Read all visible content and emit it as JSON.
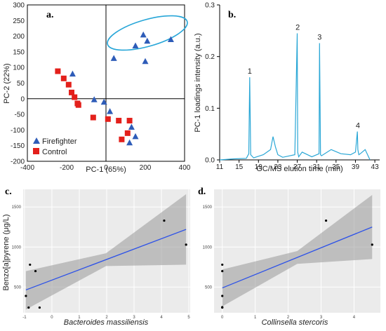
{
  "chart_data": [
    {
      "panel": "a.",
      "type": "scatter",
      "xlabel": "PC-1 (65%)",
      "ylabel": "PC-2 (22%)",
      "xlim": [
        -400,
        400
      ],
      "ylim": [
        -200,
        300
      ],
      "xticks": [
        "-400",
        "-200",
        "0",
        "200",
        "400"
      ],
      "yticks": [
        "-200",
        "-150",
        "-100",
        "-50",
        "0",
        "50",
        "100",
        "150",
        "200",
        "250",
        "300"
      ],
      "legend_position": "bottom-left",
      "series": [
        {
          "name": "Firefighter",
          "color": "#2e5cb8",
          "marker": "triangle",
          "points": [
            [
              150,
              170
            ],
            [
              190,
              205
            ],
            [
              210,
              185
            ],
            [
              330,
              190
            ],
            [
              40,
              130
            ],
            [
              200,
              120
            ],
            [
              -170,
              80
            ],
            [
              -60,
              -2
            ],
            [
              -10,
              -10
            ],
            [
              20,
              -40
            ],
            [
              130,
              -90
            ],
            [
              150,
              -120
            ],
            [
              120,
              -140
            ]
          ]
        },
        {
          "name": "Control",
          "color": "#e3201b",
          "marker": "square",
          "points": [
            [
              -245,
              88
            ],
            [
              -215,
              65
            ],
            [
              -190,
              45
            ],
            [
              -175,
              20
            ],
            [
              -160,
              5
            ],
            [
              -145,
              -15
            ],
            [
              -140,
              -20
            ],
            [
              -65,
              -60
            ],
            [
              10,
              -65
            ],
            [
              65,
              -70
            ],
            [
              120,
              -70
            ],
            [
              80,
              -130
            ],
            [
              110,
              -110
            ]
          ]
        }
      ],
      "annotation": "ellipse around Firefighter cluster"
    },
    {
      "panel": "b.",
      "type": "line",
      "xlabel": "GC/MS elution time (min)",
      "ylabel": "PC-1 loadings intensity (a.u.)",
      "xlim": [
        11,
        44
      ],
      "ylim": [
        0,
        0.3
      ],
      "xticks": [
        "11",
        "15",
        "19",
        "23",
        "27",
        "31",
        "35",
        "39",
        "43"
      ],
      "yticks": [
        "0.0",
        "0.1",
        "0.2",
        "0.3"
      ],
      "color": "#2aa7d6",
      "x": [
        11,
        14,
        16.5,
        17,
        17.2,
        17.4,
        18,
        20,
        21.5,
        22,
        22.5,
        23,
        24,
        26.5,
        27,
        27.1,
        27.3,
        28,
        30,
        31.5,
        31.6,
        31.8,
        32,
        34,
        36,
        38,
        39,
        39.4,
        39.5,
        39.7,
        40,
        41,
        42
      ],
      "y": [
        0,
        0.002,
        0.003,
        0.012,
        0.16,
        0.01,
        0.004,
        0.01,
        0.02,
        0.045,
        0.025,
        0.01,
        0.005,
        0.01,
        0.245,
        0.015,
        0.006,
        0.015,
        0.006,
        0.012,
        0.226,
        0.01,
        0.008,
        0.02,
        0.012,
        0.01,
        0.015,
        0.055,
        0.02,
        0.01,
        0.012,
        0.02,
        0.0
      ],
      "peak_labels": [
        {
          "label": "1",
          "x": 17.2,
          "y": 0.16
        },
        {
          "label": "2",
          "x": 27.1,
          "y": 0.245
        },
        {
          "label": "3",
          "x": 31.6,
          "y": 0.226
        },
        {
          "label": "4",
          "x": 39.5,
          "y": 0.055
        }
      ]
    },
    {
      "panel": "c.",
      "type": "scatter",
      "xlabel": "Bacteroides massiliensis",
      "ylabel": "Benzo[a]pyrene (μg/L)",
      "xlim": [
        -1.05,
        5.05
      ],
      "ylim": [
        180,
        1720
      ],
      "xticks": [
        "-1",
        "0",
        "1",
        "2",
        "3",
        "4",
        "5"
      ],
      "yticks": [
        "500",
        "1000",
        "1500"
      ],
      "points": [
        [
          -0.95,
          390
        ],
        [
          -0.85,
          245
        ],
        [
          -0.8,
          780
        ],
        [
          -0.6,
          700
        ],
        [
          -0.45,
          245
        ],
        [
          4.1,
          1330
        ],
        [
          4.9,
          1030
        ]
      ],
      "fit_line": {
        "x": [
          -0.95,
          4.9
        ],
        "y": [
          465,
          1220
        ],
        "color": "#2d52e8"
      },
      "band": {
        "upper": [
          700,
          1660
        ],
        "lower": [
          220,
          780
        ],
        "color": "#999999"
      }
    },
    {
      "panel": "d.",
      "type": "scatter",
      "xlabel": "Collinsella stercoris",
      "ylabel": "",
      "xlim": [
        -0.25,
        4.8
      ],
      "ylim": [
        180,
        1720
      ],
      "xticks": [
        "0",
        "1",
        "2",
        "3",
        "4"
      ],
      "yticks": [
        "500",
        "1000",
        "1500"
      ],
      "points": [
        [
          0,
          245
        ],
        [
          0,
          250
        ],
        [
          0,
          390
        ],
        [
          0,
          700
        ],
        [
          0,
          780
        ],
        [
          3.15,
          1330
        ],
        [
          4.55,
          1030
        ]
      ],
      "fit_line": {
        "x": [
          0,
          4.55
        ],
        "y": [
          490,
          1250
        ],
        "color": "#2d52e8"
      },
      "band": {
        "upper": [
          720,
          1650
        ],
        "lower": [
          260,
          850
        ],
        "color": "#999999"
      }
    }
  ]
}
